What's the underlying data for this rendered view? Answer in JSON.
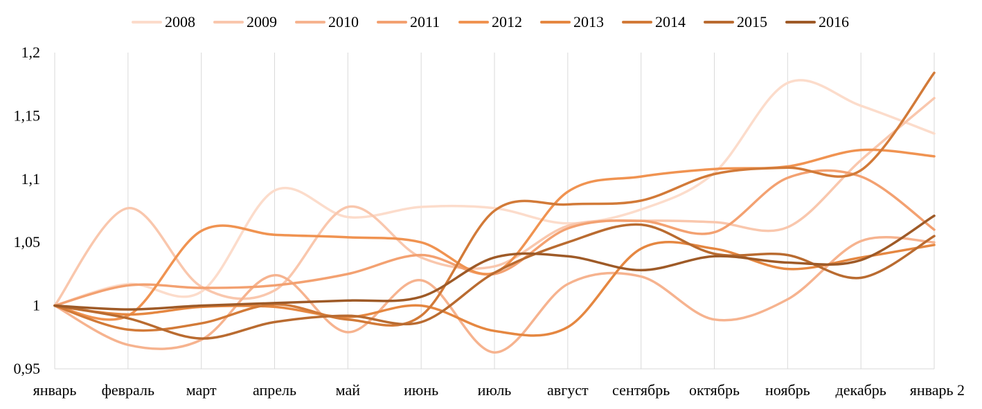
{
  "chart_data": {
    "type": "line",
    "title": "",
    "xlabel": "",
    "ylabel": "",
    "ylim": [
      0.95,
      1.2
    ],
    "y_ticks": [
      "0,95",
      "1",
      "1,05",
      "1,1",
      "1,15",
      "1,2"
    ],
    "grid": "vertical",
    "legend_position": "top",
    "smooth": true,
    "categories": [
      "январь",
      "февраль",
      "март",
      "апрель",
      "май",
      "июнь",
      "июль",
      "август",
      "сентябрь",
      "октябрь",
      "ноябрь",
      "декабрь",
      "январь 2"
    ],
    "series": [
      {
        "name": "2008",
        "color": "#FCDCCB",
        "values": [
          1.0,
          1.017,
          1.011,
          1.091,
          1.07,
          1.078,
          1.077,
          1.065,
          1.076,
          1.105,
          1.176,
          1.158,
          1.136
        ]
      },
      {
        "name": "2009",
        "color": "#F9C7AD",
        "values": [
          1.0,
          1.077,
          1.015,
          1.012,
          1.078,
          1.038,
          1.031,
          1.063,
          1.067,
          1.066,
          1.062,
          1.115,
          1.164
        ]
      },
      {
        "name": "2010",
        "color": "#F6B38F",
        "values": [
          1.0,
          0.969,
          0.973,
          1.024,
          0.979,
          1.02,
          0.963,
          1.017,
          1.023,
          0.989,
          1.005,
          1.051,
          1.05
        ]
      },
      {
        "name": "2011",
        "color": "#F3A171",
        "values": [
          1.0,
          1.016,
          1.014,
          1.016,
          1.025,
          1.04,
          1.025,
          1.061,
          1.067,
          1.058,
          1.101,
          1.102,
          1.06
        ]
      },
      {
        "name": "2012",
        "color": "#F09351",
        "values": [
          1.0,
          0.992,
          1.059,
          1.056,
          1.054,
          1.05,
          1.026,
          1.09,
          1.102,
          1.108,
          1.11,
          1.123,
          1.118
        ]
      },
      {
        "name": "2013",
        "color": "#E58741",
        "values": [
          1.0,
          0.993,
          0.999,
          0.999,
          0.991,
          1.0,
          0.98,
          0.983,
          1.045,
          1.045,
          1.029,
          1.038,
          1.048
        ]
      },
      {
        "name": "2014",
        "color": "#D27A38",
        "values": [
          1.0,
          0.981,
          0.986,
          1.001,
          0.989,
          0.992,
          1.075,
          1.08,
          1.083,
          1.104,
          1.109,
          1.107,
          1.184
        ]
      },
      {
        "name": "2015",
        "color": "#B96B30",
        "values": [
          1.0,
          0.99,
          0.974,
          0.987,
          0.992,
          0.987,
          1.026,
          1.05,
          1.064,
          1.041,
          1.04,
          1.022,
          1.055
        ]
      },
      {
        "name": "2016",
        "color": "#9E5A27",
        "values": [
          1.0,
          0.997,
          1.0,
          1.002,
          1.004,
          1.007,
          1.038,
          1.039,
          1.028,
          1.039,
          1.034,
          1.036,
          1.071
        ]
      }
    ]
  }
}
